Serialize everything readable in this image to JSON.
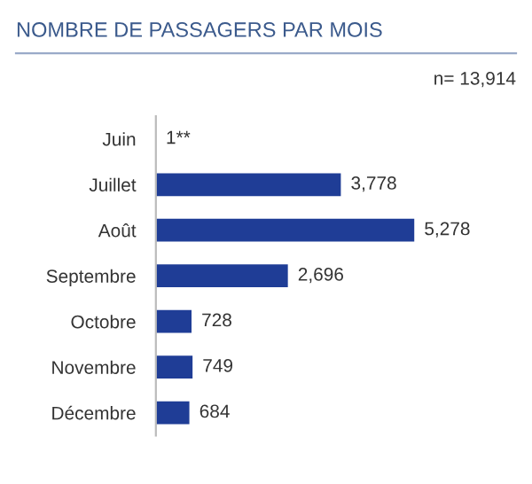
{
  "chart_data": {
    "type": "bar",
    "orientation": "horizontal",
    "title": "NOMBRE DE PASSAGERS PAR MOIS",
    "annotations": [
      "n= 13,914"
    ],
    "categories": [
      "Juin",
      "Juillet",
      "Août",
      "Septembre",
      "Octobre",
      "Novembre",
      "Décembre"
    ],
    "values": [
      1,
      3778,
      5278,
      2696,
      728,
      749,
      684
    ],
    "value_labels": [
      "1**",
      "3,778",
      "5,278",
      "2,696",
      "728",
      "749",
      "684"
    ],
    "color": "#1f3d96",
    "grid": false,
    "legend": false
  }
}
